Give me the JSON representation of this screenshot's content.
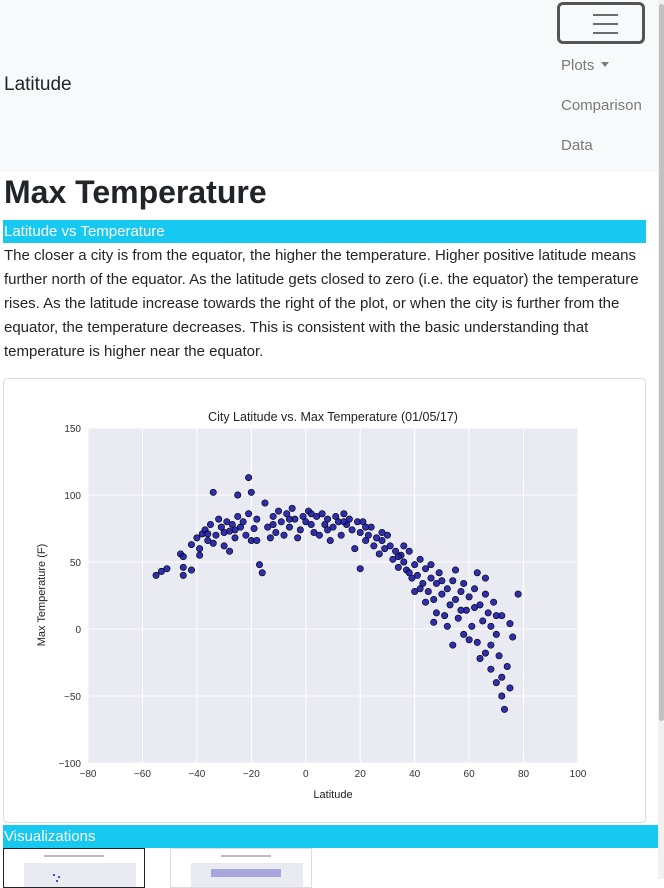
{
  "navbar": {
    "brand": "Latitude",
    "menu_icon": "hamburger-icon",
    "items": [
      {
        "label": "Plots",
        "dropdown": true
      },
      {
        "label": "Comparison",
        "dropdown": false
      },
      {
        "label": "Data",
        "dropdown": false
      }
    ]
  },
  "page": {
    "title": "Max Temperature",
    "section_heading": "Latitude vs Temperature",
    "description": "The closer a city is from the equator, the higher the temperature. Higher positive latitude means further north of the equator. As the latitude gets closed to zero (i.e. the equator) the temperature rises. As the latitude increase towards the right of the plot, or when the city is further from the equator, the temperature decreases. This is consistent with the basic understanding that temperature is higher near the equator.",
    "visualizations_heading": "Visualizations"
  },
  "colors": {
    "accent": "#17c9f0",
    "plot_background": "#eaeaf2",
    "marker": "#1a1aa6",
    "navbar_bg": "#f8f9fa"
  },
  "chart_data": {
    "type": "scatter",
    "title": "City Latitude vs. Max Temperature (01/05/17)",
    "xlabel": "Latitude",
    "ylabel": "Max Temperature (F)",
    "xlim": [
      -80,
      100
    ],
    "ylim": [
      -100,
      150
    ],
    "x_ticks": [
      "−80",
      "−60",
      "−40",
      "−20",
      "0",
      "20",
      "40",
      "60",
      "80",
      "100"
    ],
    "y_ticks": [
      "150",
      "100",
      "50",
      "0",
      "−50",
      "−100"
    ],
    "grid": true,
    "points": [
      [
        -55,
        40
      ],
      [
        -53,
        43
      ],
      [
        -51,
        45
      ],
      [
        -46,
        56
      ],
      [
        -45,
        54
      ],
      [
        -45,
        46
      ],
      [
        -45,
        40
      ],
      [
        -42,
        44
      ],
      [
        -42,
        63
      ],
      [
        -40,
        68
      ],
      [
        -39,
        60
      ],
      [
        -38,
        71
      ],
      [
        -37,
        74
      ],
      [
        -36,
        66
      ],
      [
        -35,
        78
      ],
      [
        -34,
        64
      ],
      [
        -34,
        102
      ],
      [
        -33,
        70
      ],
      [
        -32,
        82
      ],
      [
        -31,
        76
      ],
      [
        -30,
        72
      ],
      [
        -30,
        62
      ],
      [
        -29,
        80
      ],
      [
        -28,
        73
      ],
      [
        -27,
        78
      ],
      [
        -26,
        68
      ],
      [
        -25,
        84
      ],
      [
        -25,
        100
      ],
      [
        -24,
        76
      ],
      [
        -23,
        80
      ],
      [
        -22,
        70
      ],
      [
        -21,
        86
      ],
      [
        -21,
        113
      ],
      [
        -20,
        102
      ],
      [
        -20,
        66
      ],
      [
        -19,
        75
      ],
      [
        -18,
        82
      ],
      [
        -17,
        48
      ],
      [
        -16,
        42
      ],
      [
        -15,
        94
      ],
      [
        -14,
        76
      ],
      [
        -13,
        68
      ],
      [
        -12,
        84
      ],
      [
        -11,
        72
      ],
      [
        -10,
        88
      ],
      [
        -9,
        80
      ],
      [
        -8,
        70
      ],
      [
        -7,
        86
      ],
      [
        -6,
        76
      ],
      [
        -5,
        90
      ],
      [
        -4,
        82
      ],
      [
        -3,
        68
      ],
      [
        -2,
        74
      ],
      [
        -1,
        84
      ],
      [
        0,
        80
      ],
      [
        1,
        88
      ],
      [
        2,
        78
      ],
      [
        3,
        72
      ],
      [
        4,
        84
      ],
      [
        5,
        70
      ],
      [
        6,
        86
      ],
      [
        7,
        78
      ],
      [
        8,
        82
      ],
      [
        9,
        66
      ],
      [
        10,
        76
      ],
      [
        11,
        84
      ],
      [
        12,
        80
      ],
      [
        13,
        70
      ],
      [
        14,
        86
      ],
      [
        15,
        78
      ],
      [
        16,
        82
      ],
      [
        17,
        74
      ],
      [
        18,
        60
      ],
      [
        19,
        80
      ],
      [
        20,
        45
      ],
      [
        20,
        72
      ],
      [
        21,
        80
      ],
      [
        22,
        66
      ],
      [
        23,
        70
      ],
      [
        24,
        76
      ],
      [
        25,
        62
      ],
      [
        26,
        68
      ],
      [
        27,
        56
      ],
      [
        28,
        66
      ],
      [
        29,
        60
      ],
      [
        30,
        70
      ],
      [
        31,
        62
      ],
      [
        32,
        52
      ],
      [
        33,
        58
      ],
      [
        34,
        46
      ],
      [
        35,
        55
      ],
      [
        36,
        50
      ],
      [
        37,
        44
      ],
      [
        38,
        58
      ],
      [
        39,
        38
      ],
      [
        40,
        48
      ],
      [
        40,
        28
      ],
      [
        41,
        40
      ],
      [
        42,
        52
      ],
      [
        43,
        34
      ],
      [
        44,
        45
      ],
      [
        45,
        28
      ],
      [
        46,
        38
      ],
      [
        47,
        22
      ],
      [
        47,
        5
      ],
      [
        48,
        34
      ],
      [
        49,
        42
      ],
      [
        50,
        26
      ],
      [
        51,
        10
      ],
      [
        52,
        30
      ],
      [
        53,
        18
      ],
      [
        54,
        36
      ],
      [
        54,
        -12
      ],
      [
        55,
        22
      ],
      [
        56,
        8
      ],
      [
        57,
        28
      ],
      [
        58,
        -4
      ],
      [
        58,
        34
      ],
      [
        59,
        14
      ],
      [
        60,
        24
      ],
      [
        61,
        2
      ],
      [
        62,
        30
      ],
      [
        63,
        -10
      ],
      [
        63,
        42
      ],
      [
        64,
        18
      ],
      [
        65,
        6
      ],
      [
        66,
        -18
      ],
      [
        66,
        26
      ],
      [
        67,
        12
      ],
      [
        68,
        -30
      ],
      [
        68,
        2
      ],
      [
        69,
        20
      ],
      [
        70,
        -40
      ],
      [
        70,
        -4
      ],
      [
        71,
        -20
      ],
      [
        72,
        10
      ],
      [
        72,
        -50
      ],
      [
        73,
        -60
      ],
      [
        74,
        -28
      ],
      [
        75,
        4
      ],
      [
        76,
        -6
      ],
      [
        78,
        26
      ],
      [
        -39,
        55
      ],
      [
        -36,
        71
      ],
      [
        -28,
        58
      ],
      [
        -26,
        74
      ],
      [
        -18,
        66
      ],
      [
        -12,
        78
      ],
      [
        -6,
        82
      ],
      [
        2,
        86
      ],
      [
        8,
        74
      ],
      [
        14,
        80
      ],
      [
        22,
        76
      ],
      [
        28,
        72
      ],
      [
        34,
        54
      ],
      [
        36,
        62
      ],
      [
        38,
        42
      ],
      [
        42,
        30
      ],
      [
        44,
        20
      ],
      [
        46,
        48
      ],
      [
        48,
        12
      ],
      [
        50,
        36
      ],
      [
        52,
        2
      ],
      [
        55,
        44
      ],
      [
        57,
        14
      ],
      [
        60,
        -8
      ],
      [
        62,
        16
      ],
      [
        64,
        -22
      ],
      [
        66,
        38
      ],
      [
        68,
        -12
      ],
      [
        70,
        10
      ],
      [
        72,
        -36
      ],
      [
        75,
        -44
      ]
    ]
  },
  "thumbnails": [
    {
      "title": "Visualization 1 thumbnail"
    },
    {
      "title": "Visualization 2 thumbnail"
    }
  ]
}
